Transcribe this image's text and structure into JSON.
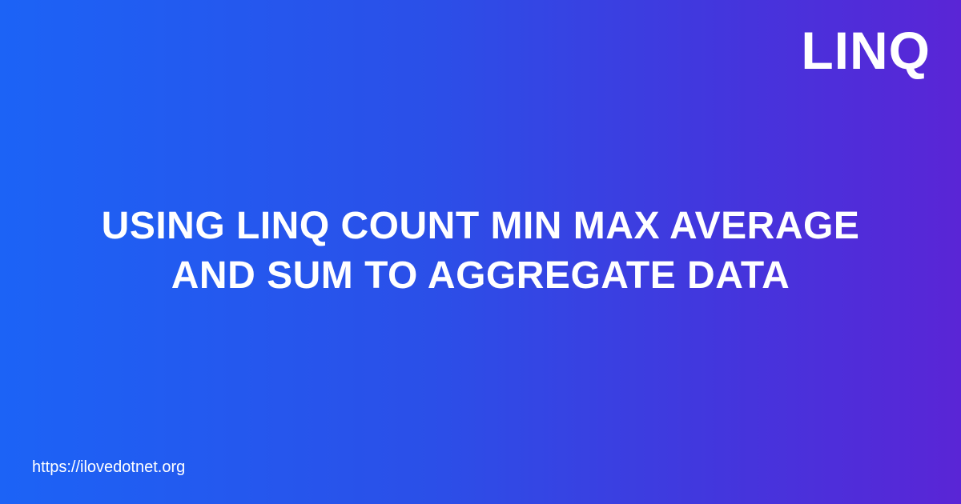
{
  "tag": "LINQ",
  "title": {
    "line1": "USING LINQ COUNT MIN MAX AVERAGE",
    "line2": "AND SUM TO AGGREGATE DATA"
  },
  "footer": {
    "url": "https://ilovedotnet.org"
  },
  "colors": {
    "gradient_start": "#1c63f6",
    "gradient_end": "#5a25d6",
    "text": "#ffffff"
  }
}
